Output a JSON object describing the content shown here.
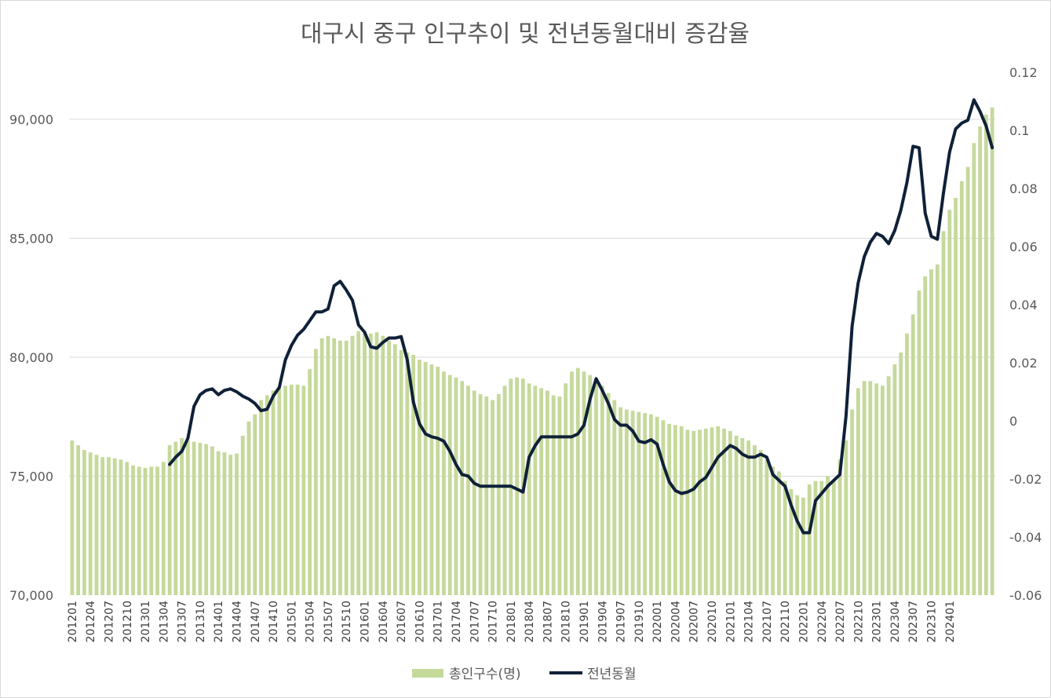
{
  "chart_data": {
    "type": "bar+line",
    "title": "대구시 중구 인구추이 및 전년동월대비 증감율",
    "y_left": {
      "min": 70000,
      "max": 92000,
      "ticks": [
        "70,000",
        "75,000",
        "80,000",
        "85,000",
        "90,000"
      ]
    },
    "y_right": {
      "min": -0.06,
      "max": 0.12,
      "ticks": [
        "-0.06",
        "-0.04",
        "-0.02",
        "0",
        "0.02",
        "0.04",
        "0.06",
        "0.08",
        "0.1",
        "0.12"
      ]
    },
    "legend": {
      "position": "bottom",
      "bar_label": "총인구수(명)",
      "line_label": "전년동월"
    },
    "colors": {
      "bar": "#c5d99b",
      "line": "#0f2138",
      "grid": "#d9d9d9",
      "text": "#595959"
    },
    "x_tick_labels": [
      "201201",
      "201204",
      "201207",
      "201210",
      "201301",
      "201304",
      "201307",
      "201310",
      "201401",
      "201404",
      "201407",
      "201410",
      "201501",
      "201504",
      "201507",
      "201510",
      "201601",
      "201604",
      "201607",
      "201610",
      "201701",
      "201704",
      "201707",
      "201710",
      "201801",
      "201804",
      "201807",
      "201810",
      "201901",
      "201904",
      "201907",
      "201910",
      "202001",
      "202004",
      "202007",
      "202010",
      "202101",
      "202104",
      "202107",
      "202110",
      "202201",
      "202204",
      "202207",
      "202210",
      "202301",
      "202304",
      "202307",
      "202310",
      "202401"
    ],
    "population": [
      76500,
      76300,
      76100,
      76000,
      75900,
      75800,
      75800,
      75750,
      75700,
      75600,
      75450,
      75400,
      75350,
      75400,
      75400,
      75600,
      76300,
      76450,
      76600,
      76500,
      76450,
      76400,
      76350,
      76250,
      76050,
      76000,
      75900,
      75950,
      76700,
      77300,
      77600,
      78200,
      78400,
      78600,
      78700,
      78800,
      78850,
      78850,
      78800,
      79500,
      80350,
      80800,
      80900,
      80800,
      80700,
      80700,
      80900,
      81100,
      81000,
      81000,
      81050,
      80900,
      80700,
      80550,
      80300,
      80200,
      80100,
      79900,
      79800,
      79700,
      79600,
      79400,
      79250,
      79150,
      79000,
      78800,
      78600,
      78450,
      78350,
      78200,
      78450,
      78800,
      79100,
      79150,
      79100,
      78900,
      78800,
      78700,
      78600,
      78400,
      78350,
      78900,
      79400,
      79550,
      79400,
      79250,
      79000,
      78800,
      78500,
      78200,
      77900,
      77800,
      77750,
      77700,
      77650,
      77600,
      77500,
      77350,
      77200,
      77150,
      77100,
      76950,
      76900,
      76950,
      77000,
      77050,
      77100,
      77000,
      76900,
      76700,
      76600,
      76500,
      76300,
      76100,
      75700,
      75400,
      75200,
      74800,
      74450,
      74200,
      74100,
      74650,
      74800,
      74800,
      75000,
      74800,
      75700,
      76500,
      77800,
      78700,
      79000,
      79000,
      78900,
      78800,
      79200,
      79700,
      80200,
      81000,
      81800,
      82800,
      83400,
      83700,
      83900,
      85300,
      86200,
      86700,
      87400,
      88000,
      89000,
      89700,
      90200,
      90500
    ],
    "yoy_change": [
      -0.015,
      -0.0125,
      -0.0105,
      -0.006,
      0.005,
      0.009,
      0.0105,
      0.011,
      0.009,
      0.0105,
      0.011,
      0.01,
      0.0085,
      0.0075,
      0.006,
      0.0035,
      0.004,
      0.0085,
      0.0115,
      0.021,
      0.026,
      0.0295,
      0.0315,
      0.0345,
      0.0375,
      0.0375,
      0.0385,
      0.0465,
      0.048,
      0.045,
      0.0415,
      0.033,
      0.0305,
      0.0255,
      0.025,
      0.027,
      0.0285,
      0.0285,
      0.029,
      0.021,
      0.0065,
      -0.001,
      -0.0045,
      -0.0055,
      -0.006,
      -0.007,
      -0.0105,
      -0.015,
      -0.0185,
      -0.019,
      -0.0215,
      -0.0225,
      -0.0225,
      -0.0225,
      -0.0225,
      -0.0225,
      -0.0225,
      -0.0235,
      -0.0245,
      -0.0125,
      -0.0085,
      -0.0055,
      -0.0055,
      -0.0055,
      -0.0055,
      -0.0055,
      -0.0055,
      -0.0045,
      -0.0015,
      0.0075,
      0.0145,
      0.0105,
      0.006,
      0.0005,
      -0.0015,
      -0.0015,
      -0.0035,
      -0.007,
      -0.0075,
      -0.0065,
      -0.008,
      -0.015,
      -0.021,
      -0.024,
      -0.025,
      -0.0245,
      -0.0235,
      -0.021,
      -0.0195,
      -0.016,
      -0.0125,
      -0.0105,
      -0.0085,
      -0.0095,
      -0.0115,
      -0.0125,
      -0.0125,
      -0.0115,
      -0.0125,
      -0.0185,
      -0.0205,
      -0.0225,
      -0.029,
      -0.0345,
      -0.0385,
      -0.0385,
      -0.0275,
      -0.025,
      -0.0225,
      -0.0205,
      -0.0185,
      0.0015,
      0.0325,
      0.0475,
      0.0565,
      0.0615,
      0.0645,
      0.0635,
      0.061,
      0.0655,
      0.0725,
      0.082,
      0.0945,
      0.094,
      0.0715,
      0.0635,
      0.0625,
      0.0785,
      0.0925,
      0.1005,
      0.1025,
      0.1035,
      0.1105,
      0.1065,
      0.1015,
      0.094
    ]
  }
}
